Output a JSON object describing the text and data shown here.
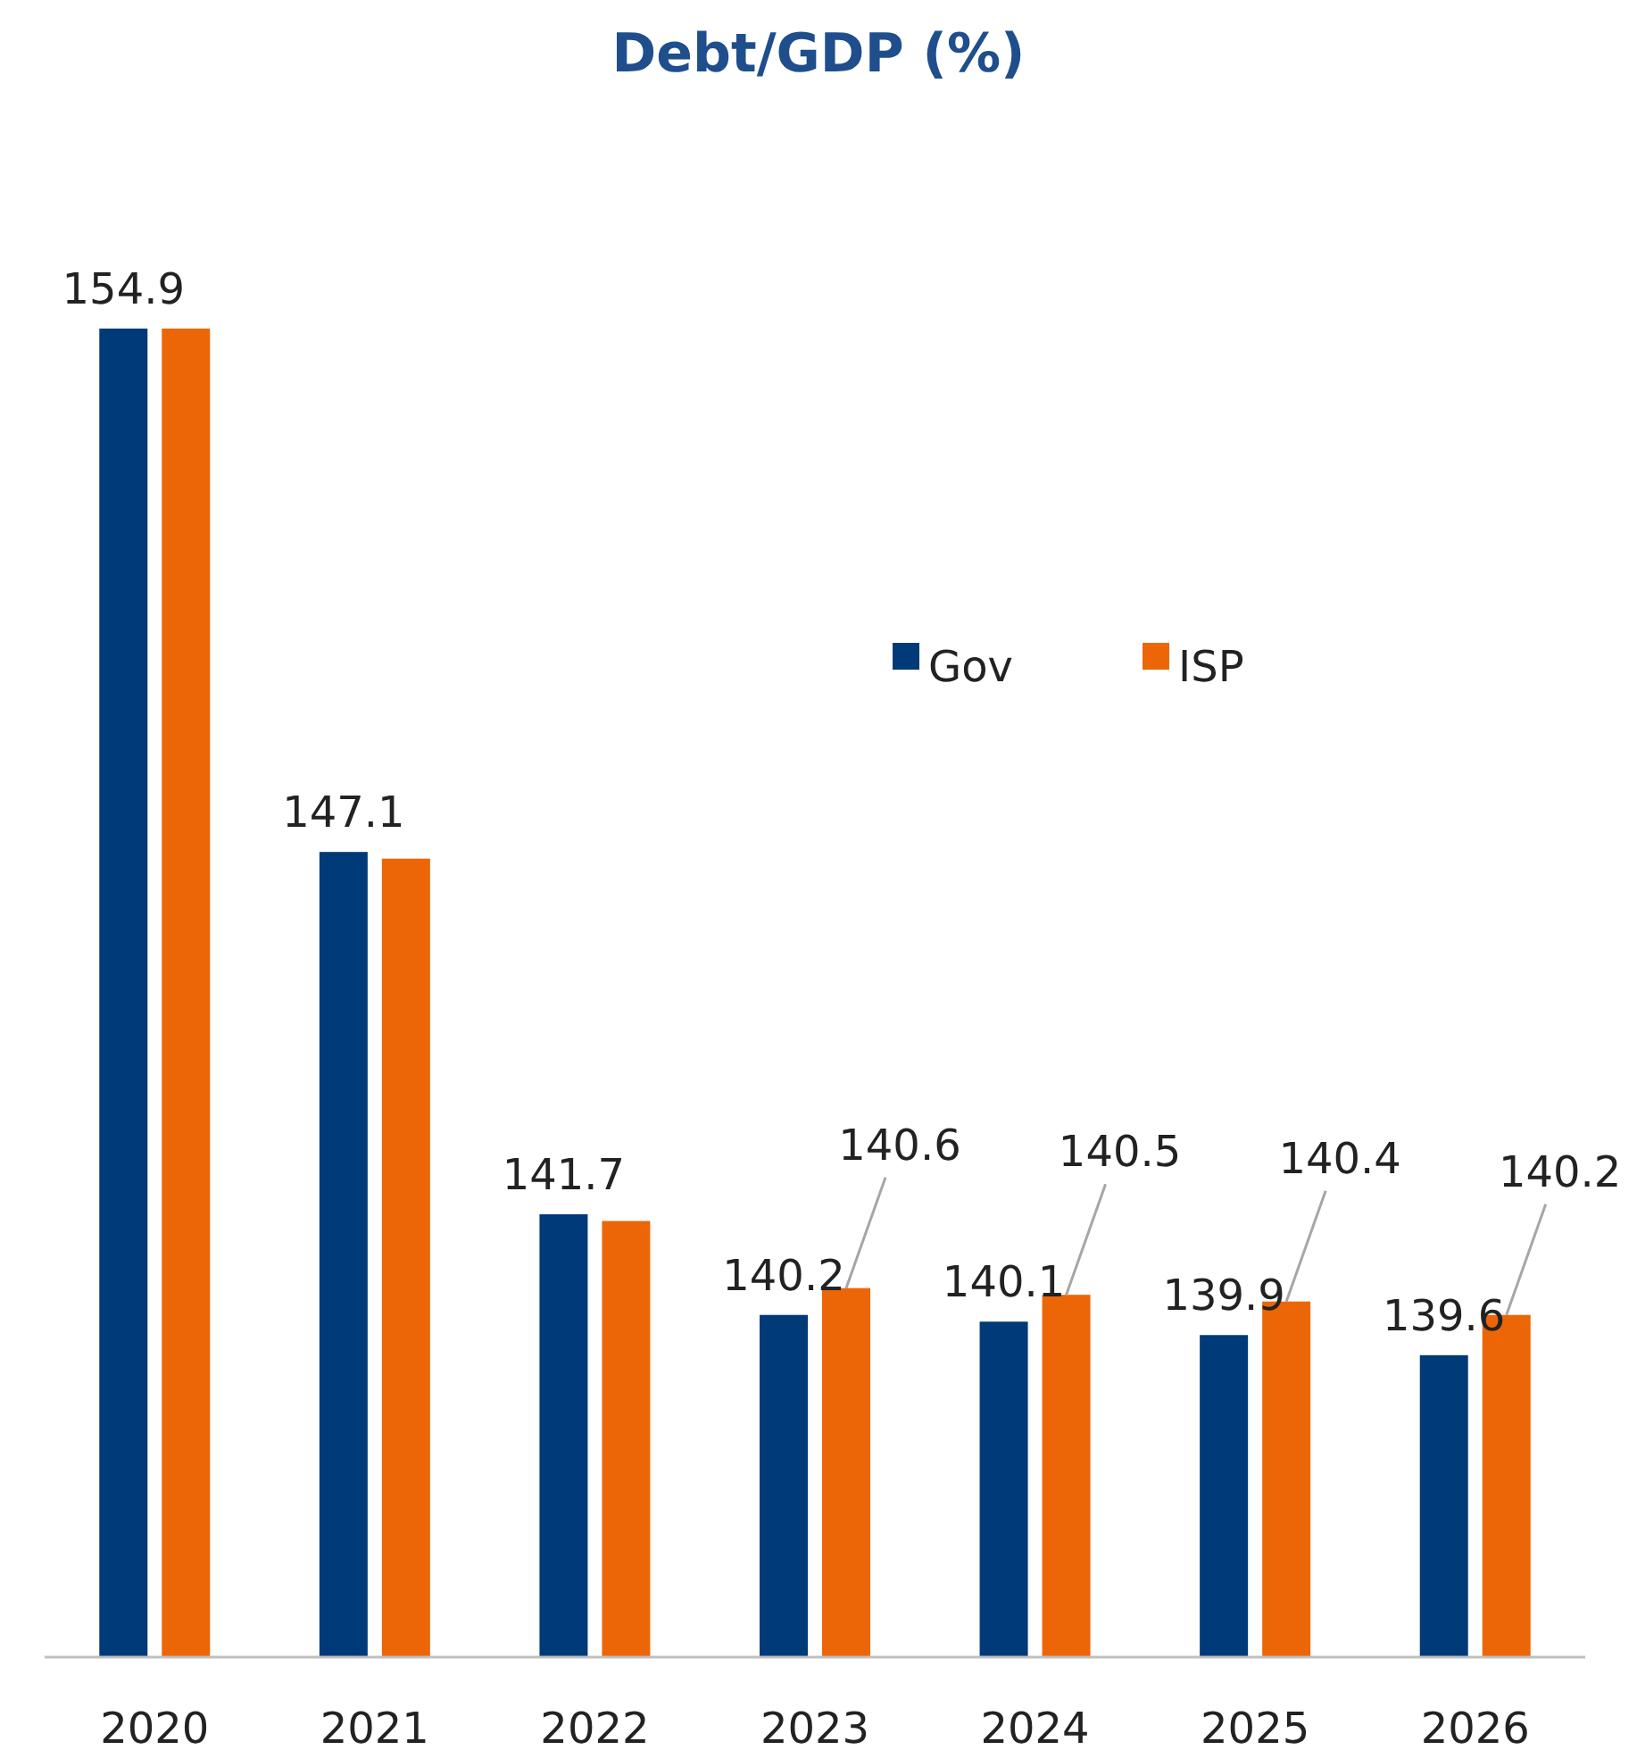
{
  "chart_data": {
    "type": "bar",
    "title": "Debt/GDP (%)",
    "categories": [
      "2020",
      "2021",
      "2022",
      "2023",
      "2024",
      "2025",
      "2026"
    ],
    "series": [
      {
        "name": "Gov",
        "color": "#003a78",
        "values": [
          154.9,
          147.1,
          141.7,
          140.2,
          140.1,
          139.9,
          139.6
        ],
        "value_labels": [
          "154.9",
          "147.1",
          "141.7",
          "140.2",
          "140.1",
          "139.9",
          "139.6"
        ]
      },
      {
        "name": "ISP",
        "color": "#ec6608",
        "values": [
          154.9,
          147.0,
          141.6,
          140.6,
          140.5,
          140.4,
          140.2
        ],
        "value_labels": [
          null,
          null,
          null,
          "140.6",
          "140.5",
          "140.4",
          "140.2"
        ]
      }
    ],
    "ylim": [
      135.1,
      154.9
    ],
    "tick_labels": "x",
    "legend": "right"
  }
}
